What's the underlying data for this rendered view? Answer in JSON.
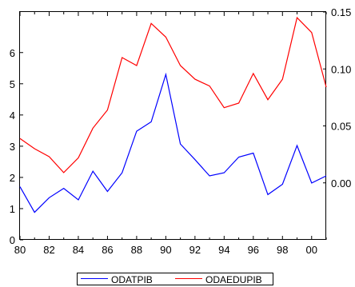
{
  "chart_data": {
    "type": "line",
    "x": [
      "80",
      "81",
      "82",
      "83",
      "84",
      "85",
      "86",
      "87",
      "88",
      "89",
      "90",
      "91",
      "92",
      "93",
      "94",
      "95",
      "96",
      "97",
      "98",
      "99",
      "00",
      "01"
    ],
    "x_tick_labels": [
      "80",
      "82",
      "84",
      "86",
      "88",
      "90",
      "92",
      "94",
      "96",
      "98",
      "00"
    ],
    "left_axis": {
      "ticks": [
        "0",
        "1",
        "2",
        "3",
        "4",
        "5",
        "6"
      ],
      "ylim": [
        0,
        7.3
      ]
    },
    "right_axis": {
      "ticks": [
        "0.00",
        "0.05",
        "0.10",
        "0.15"
      ],
      "ylim": [
        -0.05,
        0.15
      ]
    },
    "series": [
      {
        "name": "ODATPIB",
        "axis": "left",
        "color": "#0000ff",
        "values": [
          1.7,
          0.88,
          1.35,
          1.65,
          1.28,
          2.2,
          1.55,
          2.15,
          3.48,
          3.78,
          5.3,
          3.07,
          2.57,
          2.05,
          2.15,
          2.65,
          2.78,
          1.45,
          1.78,
          3.02,
          1.82,
          2.05
        ]
      },
      {
        "name": "ODAEDUPIB",
        "axis": "right",
        "color": "#ff0000",
        "values": [
          0.039,
          0.03,
          0.023,
          0.009,
          0.022,
          0.048,
          0.064,
          0.11,
          0.103,
          0.14,
          0.128,
          0.103,
          0.091,
          0.085,
          0.066,
          0.07,
          0.096,
          0.073,
          0.091,
          0.145,
          0.132,
          0.084
        ]
      }
    ],
    "legend_position": "bottom-center",
    "grid": false
  }
}
